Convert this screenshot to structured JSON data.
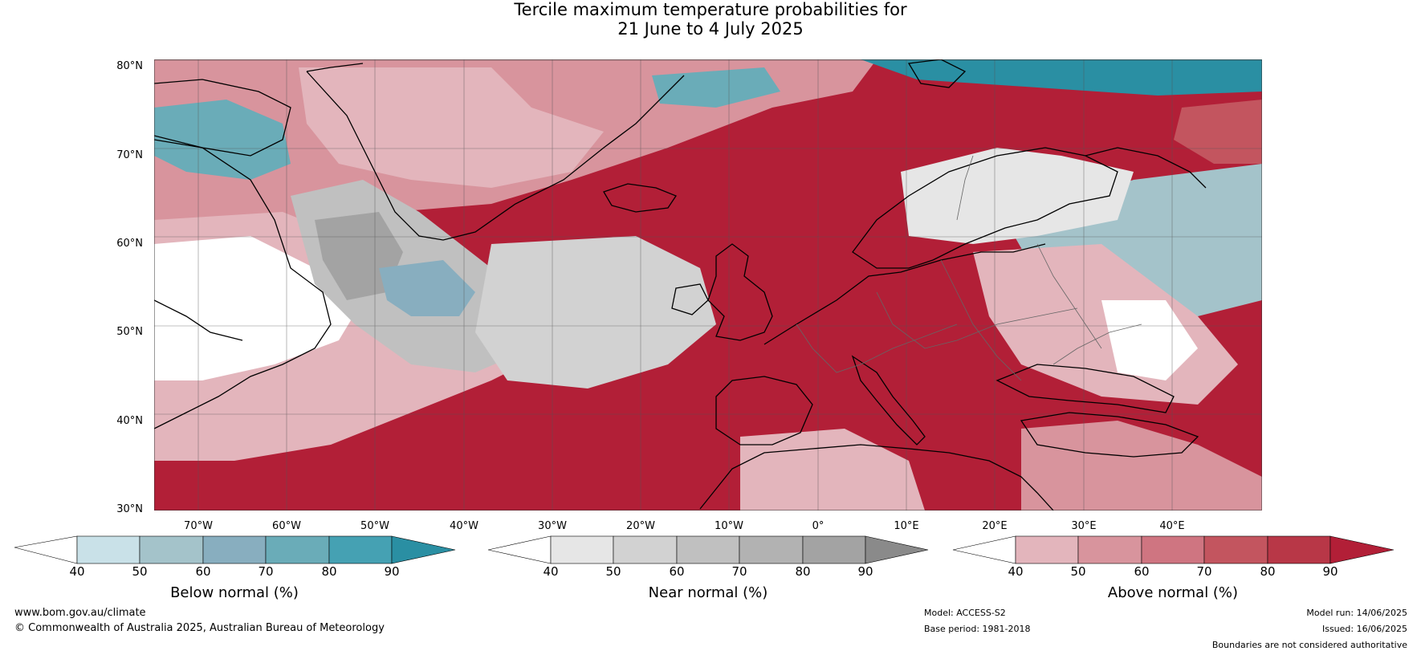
{
  "title": {
    "line1": "Tercile maximum temperature probabilities for",
    "line2": "21 June to 4 July 2025"
  },
  "map": {
    "latitudes": [
      "80°N",
      "70°N",
      "60°N",
      "50°N",
      "40°N",
      "30°N"
    ],
    "longitudes": [
      "70°W",
      "60°W",
      "50°W",
      "40°W",
      "30°W",
      "20°W",
      "10°W",
      "0°",
      "10°E",
      "20°E",
      "30°E",
      "40°E"
    ]
  },
  "colorbars": [
    {
      "id": "below",
      "label": "Below normal (%)",
      "ticks": [
        "40",
        "50",
        "60",
        "70",
        "80",
        "90"
      ],
      "colors": [
        "#ffffff",
        "#c9e1e8",
        "#a4c3ca",
        "#88aebf",
        "#6aacb8",
        "#45a1b3",
        "#2a8fa3"
      ]
    },
    {
      "id": "near",
      "label": "Near normal (%)",
      "ticks": [
        "40",
        "50",
        "60",
        "70",
        "80",
        "90"
      ],
      "colors": [
        "#ffffff",
        "#e6e6e6",
        "#d2d2d2",
        "#c0c0c0",
        "#b2b2b2",
        "#a3a3a3",
        "#8a8a8a"
      ]
    },
    {
      "id": "above",
      "label": "Above normal (%)",
      "ticks": [
        "40",
        "50",
        "60",
        "70",
        "80",
        "90"
      ],
      "colors": [
        "#ffffff",
        "#e3b5bc",
        "#d8949d",
        "#cf7581",
        "#c3555f",
        "#b83747",
        "#b21f37"
      ]
    }
  ],
  "footer": {
    "website": "www.bom.gov.au/climate",
    "copyright": "© Commonwealth of Australia 2025, Australian Bureau of Meteorology",
    "model": "Model: ACCESS-S2",
    "base_period": "Base period: 1981-2018",
    "model_run": "Model run: 14/06/2025",
    "issued": "Issued: 16/06/2025",
    "disclaimer": "Boundaries are not considered authoritative"
  }
}
